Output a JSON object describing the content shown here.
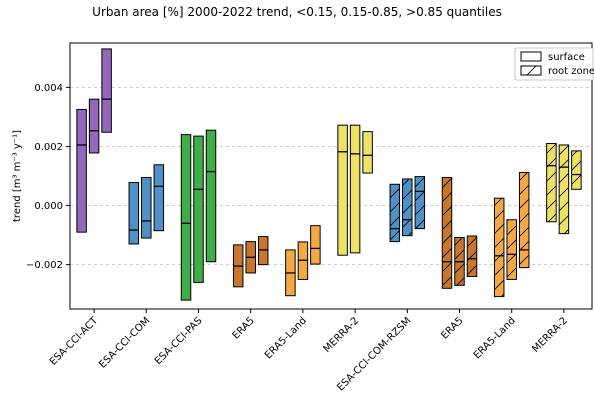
{
  "chart_data": {
    "type": "box-range",
    "title": "Urban area [%] 2000-2022 trend, <0.15, 0.15-0.85, >0.85 quantiles",
    "ylabel": "trend [m³ m⁻³ y⁻¹]",
    "xlabel": "",
    "ylim": [
      -0.0035,
      0.0055
    ],
    "yticks": [
      -0.002,
      0.0,
      0.002,
      0.004
    ],
    "ytick_labels": [
      "−0.002",
      "0.000",
      "0.002",
      "0.004"
    ],
    "grid": "horizontal dashed",
    "legend_position": "top-right",
    "legend": [
      {
        "label": "surface",
        "hatch": false
      },
      {
        "label": "root zone",
        "hatch": true
      }
    ],
    "groups": [
      {
        "label": "ESA-CCI-ACT",
        "color": "#9467bd",
        "hatch": false,
        "boxes": [
          {
            "low": -0.0009,
            "mid": 0.00205,
            "high": 0.00325
          },
          {
            "low": 0.00178,
            "mid": 0.00253,
            "high": 0.0036
          },
          {
            "low": 0.00248,
            "mid": 0.0036,
            "high": 0.0053
          }
        ]
      },
      {
        "label": "ESA-CCI-COM",
        "color": "#4f90c6",
        "hatch": false,
        "boxes": [
          {
            "low": -0.0013,
            "mid": -0.00083,
            "high": 0.00078
          },
          {
            "low": -0.0011,
            "mid": -0.00052,
            "high": 0.00095
          },
          {
            "low": -0.00085,
            "mid": 0.00065,
            "high": 0.00138
          }
        ]
      },
      {
        "label": "ESA-CCI-PAS",
        "color": "#3fae49",
        "hatch": false,
        "boxes": [
          {
            "low": -0.0032,
            "mid": -0.0006,
            "high": 0.0024
          },
          {
            "low": -0.0026,
            "mid": 0.00055,
            "high": 0.00235
          },
          {
            "low": -0.0019,
            "mid": 0.00115,
            "high": 0.00255
          }
        ]
      },
      {
        "label": "ERA5",
        "color": "#c7762d",
        "hatch": false,
        "boxes": [
          {
            "low": -0.00275,
            "mid": -0.00205,
            "high": -0.00133
          },
          {
            "low": -0.00228,
            "mid": -0.00175,
            "high": -0.00122
          },
          {
            "low": -0.002,
            "mid": -0.0015,
            "high": -0.00105
          }
        ]
      },
      {
        "label": "ERA5-Land",
        "color": "#f6a942",
        "hatch": false,
        "boxes": [
          {
            "low": -0.00305,
            "mid": -0.00228,
            "high": -0.0015
          },
          {
            "low": -0.0025,
            "mid": -0.00185,
            "high": -0.00123
          },
          {
            "low": -0.00198,
            "mid": -0.00145,
            "high": -0.00068
          }
        ]
      },
      {
        "label": "MERRA-2",
        "color": "#eee264",
        "hatch": false,
        "boxes": [
          {
            "low": -0.00168,
            "mid": 0.00182,
            "high": 0.00272
          },
          {
            "low": -0.0016,
            "mid": 0.00175,
            "high": 0.00272
          },
          {
            "low": 0.0011,
            "mid": 0.0017,
            "high": 0.0025
          }
        ]
      },
      {
        "label": "ESA-CCI-COM-RZSM",
        "color": "#4f90c6",
        "hatch": true,
        "boxes": [
          {
            "low": -0.00122,
            "mid": -0.00078,
            "high": 0.00072
          },
          {
            "low": -0.00102,
            "mid": -0.00048,
            "high": 0.0009
          },
          {
            "low": -0.00078,
            "mid": 0.00048,
            "high": 0.00098
          }
        ]
      },
      {
        "label": "ERA5",
        "color": "#c7762d",
        "hatch": true,
        "boxes": [
          {
            "low": -0.0028,
            "mid": -0.0019,
            "high": 0.00095
          },
          {
            "low": -0.0027,
            "mid": -0.0019,
            "high": -0.00108
          },
          {
            "low": -0.0024,
            "mid": -0.0018,
            "high": -0.00103
          }
        ]
      },
      {
        "label": "ERA5-Land",
        "color": "#f6a942",
        "hatch": true,
        "boxes": [
          {
            "low": -0.00308,
            "mid": -0.0017,
            "high": 0.00025
          },
          {
            "low": -0.0025,
            "mid": -0.00165,
            "high": -0.00048
          },
          {
            "low": -0.0021,
            "mid": -0.0015,
            "high": 0.00112
          }
        ]
      },
      {
        "label": "MERRA-2",
        "color": "#eee264",
        "hatch": true,
        "boxes": [
          {
            "low": -0.00055,
            "mid": 0.00135,
            "high": 0.0021
          },
          {
            "low": -0.00095,
            "mid": 0.0013,
            "high": 0.00205
          },
          {
            "low": 0.00055,
            "mid": 0.00105,
            "high": 0.00185
          }
        ]
      }
    ]
  }
}
